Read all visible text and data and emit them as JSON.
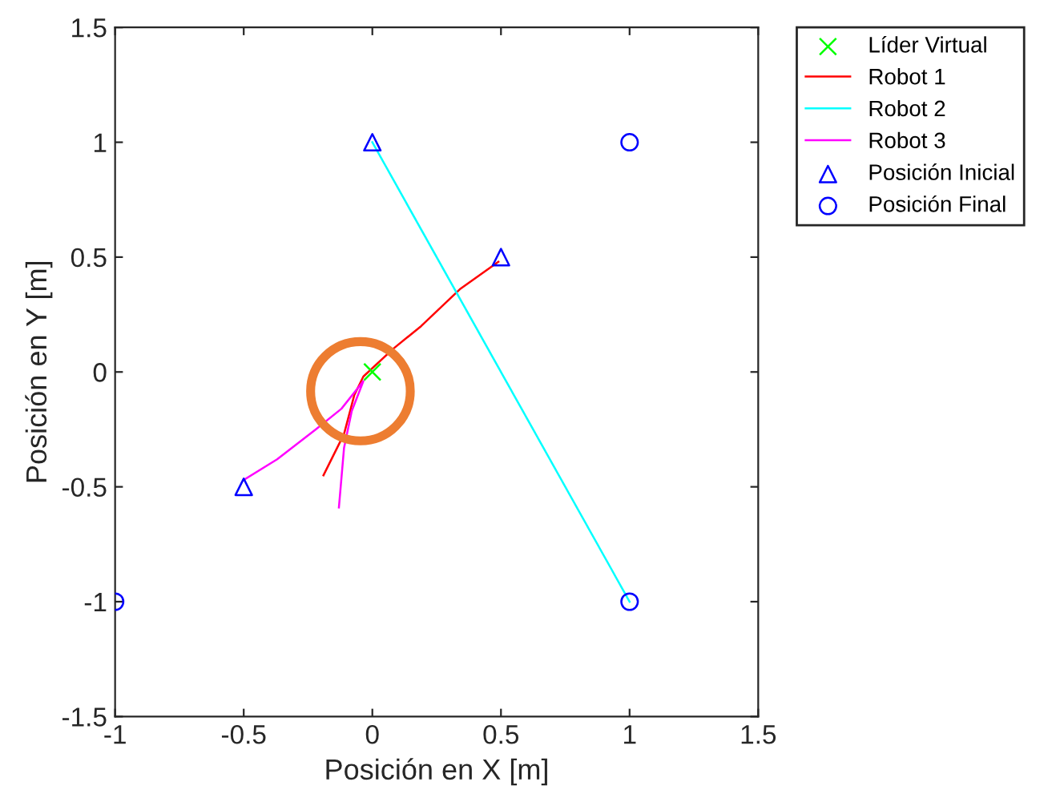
{
  "chart_data": {
    "type": "line",
    "xlabel": "Posición en X [m]",
    "ylabel": "Posición en Y [m]",
    "xlim": [
      -1,
      1.5
    ],
    "ylim": [
      -1.5,
      1.5
    ],
    "xticks": [
      -1,
      -0.5,
      0,
      0.5,
      1,
      1.5
    ],
    "yticks": [
      -1.5,
      -1,
      -0.5,
      0,
      0.5,
      1,
      1.5
    ],
    "grid": false,
    "legend": "right",
    "series": [
      {
        "name": "Líder Virtual",
        "type": "scatter",
        "marker": "cross",
        "color": "#00ff00",
        "x": [
          0
        ],
        "values": [
          0
        ]
      },
      {
        "name": "Robot 1",
        "color": "#ff0000",
        "x": [
          0.49,
          0.34,
          0.19,
          0.08,
          -0.035,
          -0.07,
          -0.11,
          -0.19
        ],
        "values": [
          0.48,
          0.36,
          0.2,
          0.1,
          -0.02,
          -0.1,
          -0.27,
          -0.45
        ]
      },
      {
        "name": "Robot 2",
        "color": "#00ffff",
        "x": [
          0,
          1
        ],
        "values": [
          1,
          -1
        ]
      },
      {
        "name": "Robot 3",
        "color": "#ff00ff",
        "x": [
          -0.5,
          -0.37,
          -0.22,
          -0.12,
          -0.035,
          -0.08,
          -0.11,
          -0.13
        ],
        "values": [
          -0.47,
          -0.38,
          -0.25,
          -0.16,
          -0.04,
          -0.17,
          -0.33,
          -0.59
        ]
      },
      {
        "name": "Posición Inicial",
        "type": "scatter",
        "marker": "triangle",
        "color": "#0000ff",
        "x": [
          0.5,
          0,
          -0.5
        ],
        "values": [
          0.5,
          1,
          -0.5
        ]
      },
      {
        "name": "Posición Final",
        "type": "scatter",
        "marker": "circle",
        "color": "#0000ff",
        "x": [
          1,
          1,
          -1
        ],
        "values": [
          1,
          -1,
          -1
        ]
      }
    ]
  }
}
